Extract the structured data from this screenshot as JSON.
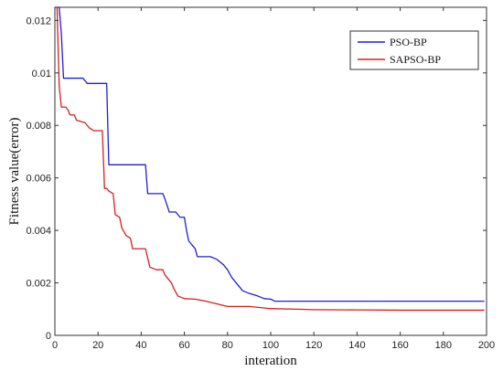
{
  "chart_data": {
    "type": "line",
    "title": "",
    "xlabel": "interation",
    "ylabel": "Fitness value(error)",
    "xlim": [
      0,
      200
    ],
    "ylim": [
      0,
      0.0125
    ],
    "xticks": [
      0,
      20,
      40,
      60,
      80,
      100,
      120,
      140,
      160,
      180,
      200
    ],
    "yticks": [
      0,
      0.002,
      0.004,
      0.006,
      0.008,
      0.01,
      0.012
    ],
    "ytick_labels": [
      "0",
      "0.002",
      "0.004",
      "0.006",
      "0.008",
      "0.01",
      "0.012"
    ],
    "grid": false,
    "legend_position": "top-right",
    "series": [
      {
        "name": "PSO-BP",
        "color": "#1f1fd6",
        "points": [
          [
            0,
            0.0125
          ],
          [
            2,
            0.0125
          ],
          [
            3,
            0.0115
          ],
          [
            4,
            0.0098
          ],
          [
            10,
            0.0098
          ],
          [
            12,
            0.0098
          ],
          [
            13,
            0.0098
          ],
          [
            15,
            0.0096
          ],
          [
            20,
            0.0096
          ],
          [
            24,
            0.0096
          ],
          [
            25,
            0.0065
          ],
          [
            42,
            0.0065
          ],
          [
            43,
            0.0054
          ],
          [
            49,
            0.0054
          ],
          [
            50,
            0.0054
          ],
          [
            51,
            0.0052
          ],
          [
            53,
            0.0047
          ],
          [
            56,
            0.0047
          ],
          [
            57,
            0.0046
          ],
          [
            58,
            0.0045
          ],
          [
            60,
            0.0045
          ],
          [
            61,
            0.004
          ],
          [
            62,
            0.0036
          ],
          [
            63,
            0.0035
          ],
          [
            64,
            0.0034
          ],
          [
            65,
            0.0033
          ],
          [
            66,
            0.003
          ],
          [
            72,
            0.003
          ],
          [
            75,
            0.0029
          ],
          [
            78,
            0.0027
          ],
          [
            80,
            0.0025
          ],
          [
            82,
            0.0022
          ],
          [
            85,
            0.0019
          ],
          [
            87,
            0.0017
          ],
          [
            90,
            0.0016
          ],
          [
            94,
            0.0015
          ],
          [
            97,
            0.0014
          ],
          [
            100,
            0.00138
          ],
          [
            102,
            0.0013
          ],
          [
            105,
            0.0013
          ],
          [
            120,
            0.0013
          ],
          [
            140,
            0.0013
          ],
          [
            160,
            0.0013
          ],
          [
            180,
            0.0013
          ],
          [
            199,
            0.0013
          ]
        ]
      },
      {
        "name": "SAPSO-BP",
        "color": "#d61f1f",
        "points": [
          [
            0,
            0.0125
          ],
          [
            1,
            0.0125
          ],
          [
            2,
            0.0095
          ],
          [
            3,
            0.0087
          ],
          [
            5,
            0.0087
          ],
          [
            6,
            0.0086
          ],
          [
            7,
            0.0084
          ],
          [
            9,
            0.0084
          ],
          [
            10,
            0.0082
          ],
          [
            14,
            0.0081
          ],
          [
            16,
            0.0079
          ],
          [
            18,
            0.0078
          ],
          [
            22,
            0.0078
          ],
          [
            23,
            0.0056
          ],
          [
            24,
            0.0056
          ],
          [
            25,
            0.0055
          ],
          [
            27,
            0.0054
          ],
          [
            28,
            0.0046
          ],
          [
            30,
            0.0045
          ],
          [
            31,
            0.0041
          ],
          [
            33,
            0.0038
          ],
          [
            35,
            0.0037
          ],
          [
            36,
            0.0033
          ],
          [
            40,
            0.0033
          ],
          [
            42,
            0.0033
          ],
          [
            44,
            0.0026
          ],
          [
            47,
            0.0025
          ],
          [
            49,
            0.0025
          ],
          [
            50,
            0.0025
          ],
          [
            51,
            0.0023
          ],
          [
            53,
            0.0021
          ],
          [
            54,
            0.002
          ],
          [
            55,
            0.0018
          ],
          [
            57,
            0.0015
          ],
          [
            60,
            0.0014
          ],
          [
            65,
            0.00138
          ],
          [
            70,
            0.0013
          ],
          [
            75,
            0.0012
          ],
          [
            80,
            0.0011
          ],
          [
            90,
            0.0011
          ],
          [
            100,
            0.00102
          ],
          [
            110,
            0.001
          ],
          [
            120,
            0.00098
          ],
          [
            140,
            0.00097
          ],
          [
            160,
            0.00096
          ],
          [
            180,
            0.00096
          ],
          [
            199,
            0.00096
          ]
        ]
      }
    ]
  }
}
